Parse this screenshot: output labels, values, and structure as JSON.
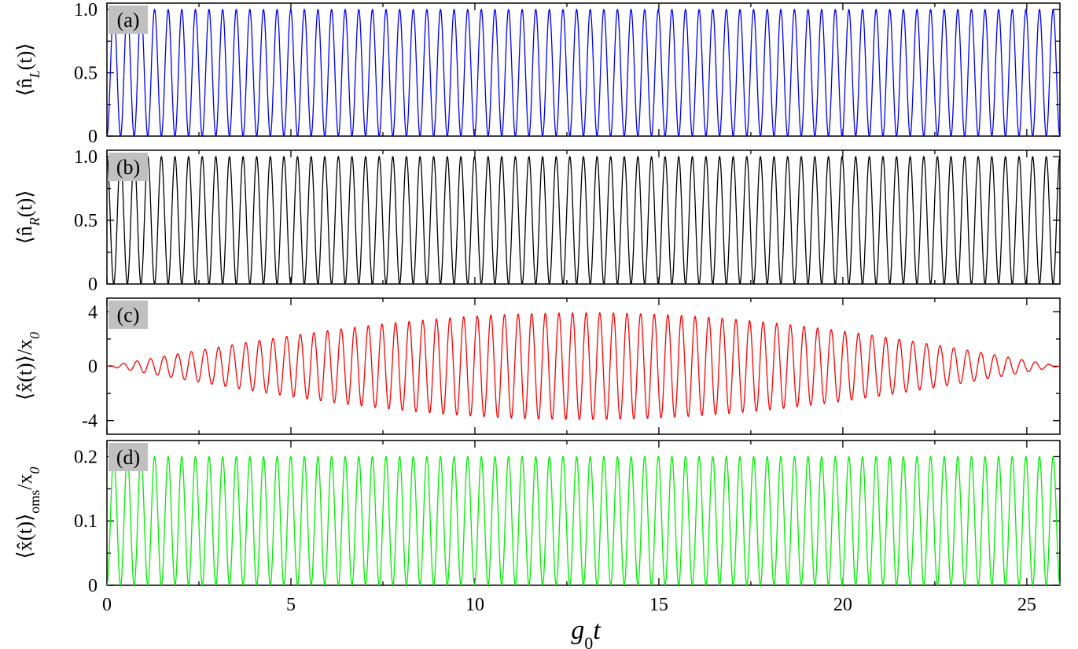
{
  "chart_data": {
    "type": "line",
    "x_range": [
      0,
      25.9
    ],
    "xlabel": "g0t",
    "x_ticks": [
      0,
      5,
      10,
      15,
      20,
      25
    ],
    "x_tick_labels": [
      "0",
      "5",
      "10",
      "15",
      "20",
      "25"
    ],
    "oscillations_over_range": 70,
    "panels": [
      {
        "label": "(a)",
        "ylabel": "⟨n̂L(t)⟩",
        "color": "#0000ff",
        "ylim": [
          0,
          1.05
        ],
        "y_ticks": [
          0,
          0.5,
          1.0
        ],
        "y_tick_labels": [
          "0",
          "0.5",
          "1.0"
        ],
        "series": {
          "shape": "sin-squared",
          "amplitude": 1.0,
          "baseline": 0,
          "phase": "starts-at-0"
        }
      },
      {
        "label": "(b)",
        "ylabel": "⟨n̂R(t)⟩",
        "color": "#000000",
        "ylim": [
          0,
          1.05
        ],
        "y_ticks": [
          0,
          0.5,
          1.0
        ],
        "y_tick_labels": [
          "0",
          "0.5",
          "1.0"
        ],
        "series": {
          "shape": "cos-squared",
          "amplitude": 1.0,
          "baseline": 0,
          "phase": "starts-at-1"
        }
      },
      {
        "label": "(c)",
        "ylabel": "⟨x̂(t)⟩/x0",
        "color": "#ff0000",
        "ylim": [
          -5,
          5
        ],
        "y_ticks": [
          -4,
          0,
          4
        ],
        "y_tick_labels": [
          "-4",
          "0",
          "4"
        ],
        "series": {
          "shape": "beat",
          "amplitude_max": 4.0,
          "envelope_minima_at": [
            0,
            25.9
          ]
        }
      },
      {
        "label": "(d)",
        "ylabel": "⟨x̂(t)⟩oms/x0",
        "color": "#00ee00",
        "ylim": [
          0,
          0.225
        ],
        "y_ticks": [
          0,
          0.1,
          0.2
        ],
        "y_tick_labels": [
          "0",
          "0.1",
          "0.2"
        ],
        "series": {
          "shape": "sin-squared",
          "amplitude": 0.2,
          "baseline": 0,
          "phase": "starts-at-0"
        }
      }
    ]
  }
}
